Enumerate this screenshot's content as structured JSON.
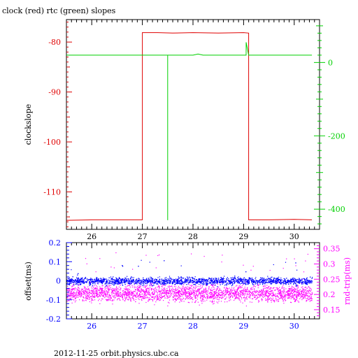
{
  "page": {
    "title": "clock (red) rtc (green) slopes",
    "footer": "2012-11-25 orbit.physics.ubc.ca"
  },
  "colors": {
    "clock": "#e00000",
    "rtc": "#00d000",
    "offset": "#0000ff",
    "rtt": "#ff00ff",
    "axes": "#000000"
  },
  "chart_data": [
    {
      "type": "line",
      "title": "clock (red) rtc (green) slopes",
      "xlabel": "",
      "ylabel": "clockslope",
      "xlim": [
        25.5,
        30.5
      ],
      "ylim": [
        -117.5,
        -75.5
      ],
      "y2lim": [
        -455,
        117
      ],
      "x_ticks": [
        26,
        27,
        28,
        29,
        30
      ],
      "y_ticks": [
        -80,
        -90,
        -100,
        -110
      ],
      "y2_ticks": [
        0,
        -200,
        -400
      ],
      "y_tick_color": "#e00000",
      "y2_tick_color": "#00d000",
      "series": [
        {
          "name": "clock",
          "axis": "left",
          "color": "#e00000",
          "x": [
            25.5,
            26.0,
            26.4,
            26.7,
            27.0,
            27.0,
            27.3,
            27.6,
            28.0,
            28.5,
            29.0,
            29.1,
            29.1,
            29.5,
            30.0,
            30.35
          ],
          "y": [
            -115.7,
            -115.6,
            -115.6,
            -115.6,
            -115.6,
            -78.1,
            -78.1,
            -78.2,
            -78.1,
            -78.2,
            -78.1,
            -78.2,
            -115.6,
            -115.6,
            -115.5,
            -115.6
          ]
        },
        {
          "name": "rtc",
          "axis": "right",
          "color": "#00d000",
          "x": [
            25.5,
            27.5,
            27.5,
            27.5,
            27.5,
            28.0,
            28.1,
            28.2,
            29.0,
            29.05,
            29.05,
            29.1,
            30.35
          ],
          "y": [
            20,
            20,
            20,
            -430,
            20,
            20,
            23,
            20,
            20,
            20,
            55,
            20,
            20
          ]
        }
      ]
    },
    {
      "type": "scatter",
      "xlabel": "",
      "ylabel": "offset(ms)",
      "y2label": "rnd-trip(ms)",
      "xlim": [
        25.5,
        30.5
      ],
      "ylim": [
        -0.2,
        0.2
      ],
      "y2lim": [
        0.12,
        0.37
      ],
      "x_ticks": [
        26,
        27,
        28,
        29,
        30
      ],
      "y_ticks": [
        0.2,
        0.1,
        0,
        -0.1,
        -0.2
      ],
      "y2_ticks": [
        0.35,
        0.3,
        0.25,
        0.2,
        0.15
      ],
      "tick_color": "#0000ff",
      "y2_tick_color": "#ff00ff",
      "series": [
        {
          "name": "offset",
          "axis": "left",
          "color": "#0000ff",
          "x_range": [
            25.5,
            30.35
          ],
          "y_center": 0.0,
          "y_spread": 0.018
        },
        {
          "name": "rtt",
          "axis": "right",
          "color": "#ff00ff",
          "x_range": [
            25.5,
            30.35
          ],
          "y_center": 0.205,
          "y_spread": 0.025
        }
      ]
    }
  ]
}
